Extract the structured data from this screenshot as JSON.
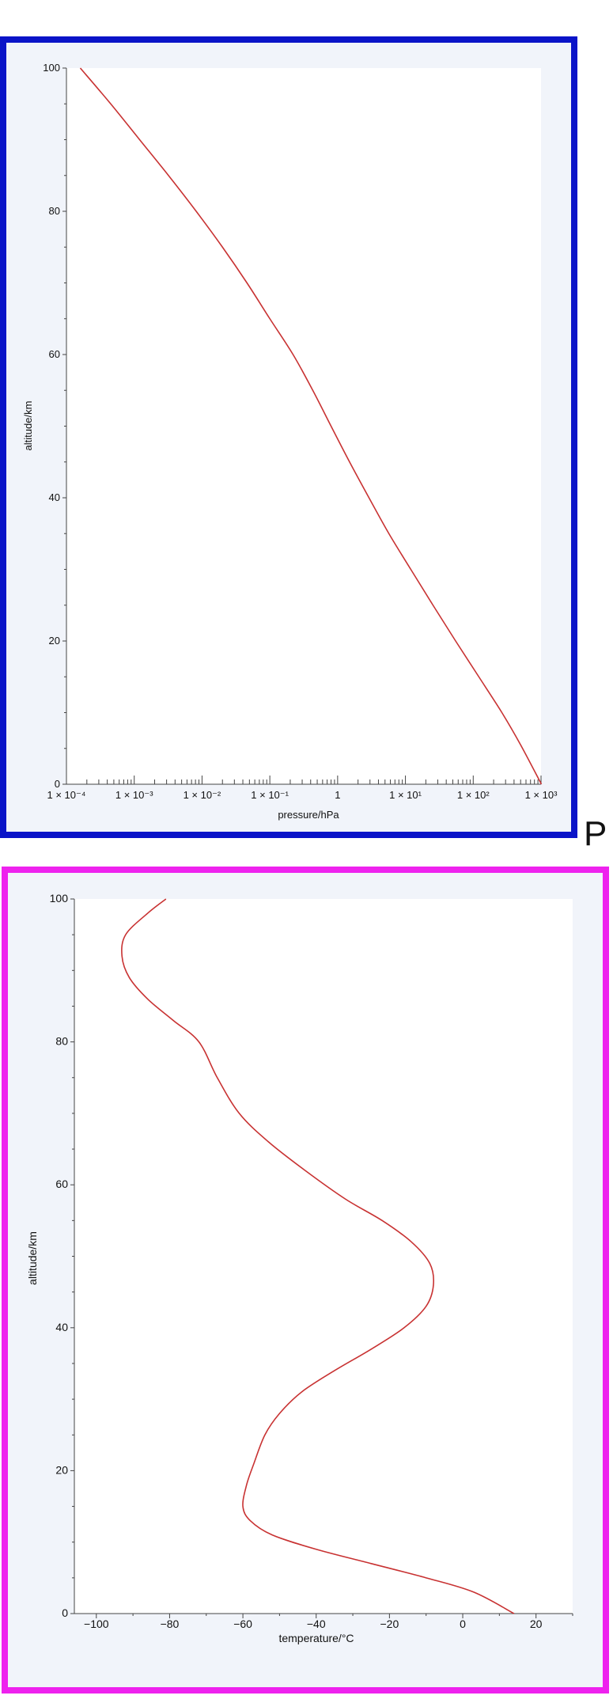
{
  "side_label": "P",
  "colors": {
    "page_bg": "#ffffff",
    "panel_bg": "#f1f4fa",
    "plot_bg": "#ffffff",
    "frame_top": "#0a14c8",
    "frame_bottom": "#ee22ee",
    "curve": "#c83232",
    "axis": "#444444",
    "text": "#111111"
  },
  "chart_data": [
    {
      "type": "line",
      "title": "",
      "xlabel": "pressure/hPa",
      "ylabel": "altitude/km",
      "x_scale": "log",
      "xlim": [
        0.0001,
        1000
      ],
      "ylim": [
        0,
        100
      ],
      "x_ticks": [
        {
          "value": 0.0001,
          "label": "1 × 10⁻⁴"
        },
        {
          "value": 0.001,
          "label": "1 × 10⁻³"
        },
        {
          "value": 0.01,
          "label": "1 × 10⁻²"
        },
        {
          "value": 0.1,
          "label": "1 × 10⁻¹"
        },
        {
          "value": 1,
          "label": "1"
        },
        {
          "value": 10,
          "label": "1 × 10¹"
        },
        {
          "value": 100,
          "label": "1 × 10²"
        },
        {
          "value": 1000,
          "label": "1 × 10³"
        }
      ],
      "y_ticks": [
        {
          "value": 0,
          "label": "0"
        },
        {
          "value": 20,
          "label": "20"
        },
        {
          "value": 40,
          "label": "40"
        },
        {
          "value": 60,
          "label": "60"
        },
        {
          "value": 80,
          "label": "80"
        },
        {
          "value": 100,
          "label": "100"
        }
      ],
      "grid": false,
      "series": [
        {
          "points": [
            [
              1013,
              0
            ],
            [
              500,
              5.5
            ],
            [
              265,
              10
            ],
            [
              121,
              15
            ],
            [
              55,
              20
            ],
            [
              25.5,
              25
            ],
            [
              12,
              30
            ],
            [
              5.7,
              35
            ],
            [
              2.9,
              40
            ],
            [
              1.5,
              45
            ],
            [
              0.8,
              50
            ],
            [
              0.43,
              55
            ],
            [
              0.22,
              60
            ],
            [
              0.1,
              65
            ],
            [
              0.046,
              70
            ],
            [
              0.02,
              75
            ],
            [
              0.0082,
              80
            ],
            [
              0.0032,
              85
            ],
            [
              0.0012,
              90
            ],
            [
              0.00045,
              95
            ],
            [
              0.00016,
              100
            ]
          ]
        }
      ]
    },
    {
      "type": "line",
      "title": "",
      "xlabel": "temperature/°C",
      "ylabel": "altitude/km",
      "xlim": [
        -106,
        30
      ],
      "ylim": [
        0,
        100
      ],
      "x_ticks": [
        {
          "value": -100,
          "label": "−100"
        },
        {
          "value": -80,
          "label": "−80"
        },
        {
          "value": -60,
          "label": "−60"
        },
        {
          "value": -40,
          "label": "−40"
        },
        {
          "value": -20,
          "label": "−20"
        },
        {
          "value": 0,
          "label": "0"
        },
        {
          "value": 20,
          "label": "20"
        }
      ],
      "y_ticks": [
        {
          "value": 0,
          "label": "0"
        },
        {
          "value": 20,
          "label": "20"
        },
        {
          "value": 40,
          "label": "40"
        },
        {
          "value": 60,
          "label": "60"
        },
        {
          "value": 80,
          "label": "80"
        },
        {
          "value": 100,
          "label": "100"
        }
      ],
      "grid": false,
      "series": [
        {
          "points": [
            [
              14,
              0
            ],
            [
              3,
              3
            ],
            [
              -10,
              5
            ],
            [
              -25,
              7
            ],
            [
              -40,
              9
            ],
            [
              -52,
              11
            ],
            [
              -58,
              13
            ],
            [
              -60,
              15
            ],
            [
              -59,
              18
            ],
            [
              -57,
              21
            ],
            [
              -54,
              25
            ],
            [
              -50,
              28
            ],
            [
              -44,
              31
            ],
            [
              -35,
              34
            ],
            [
              -25,
              37
            ],
            [
              -16,
              40
            ],
            [
              -10,
              43
            ],
            [
              -8,
              46
            ],
            [
              -9,
              49
            ],
            [
              -14,
              52
            ],
            [
              -22,
              55
            ],
            [
              -32,
              58
            ],
            [
              -43,
              62
            ],
            [
              -53,
              66
            ],
            [
              -61,
              70
            ],
            [
              -67,
              75
            ],
            [
              -72,
              80
            ],
            [
              -79,
              83
            ],
            [
              -86,
              86
            ],
            [
              -91,
              89
            ],
            [
              -93,
              92
            ],
            [
              -92,
              95
            ],
            [
              -86,
              98
            ],
            [
              -81,
              100
            ]
          ]
        }
      ]
    }
  ]
}
